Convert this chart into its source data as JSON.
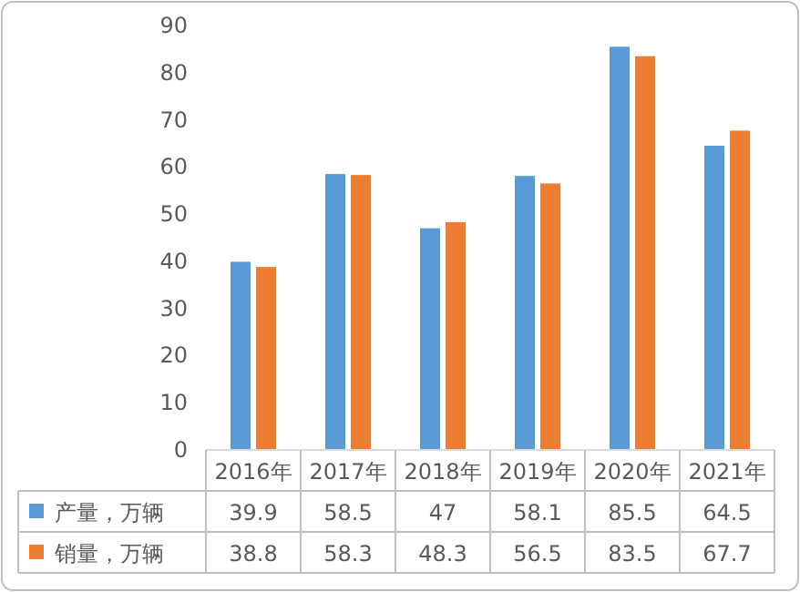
{
  "chart_data": {
    "type": "bar",
    "categories": [
      "2016年",
      "2017年",
      "2018年",
      "2019年",
      "2020年",
      "2021年"
    ],
    "series": [
      {
        "name": "产量，万辆",
        "color": "#5b9bd5",
        "values": [
          39.9,
          58.5,
          47,
          58.1,
          85.5,
          64.5
        ]
      },
      {
        "name": "销量，万辆",
        "color": "#ed7d31",
        "values": [
          38.8,
          58.3,
          48.3,
          56.5,
          83.5,
          67.7
        ]
      }
    ],
    "ylim": [
      0,
      90
    ],
    "yticks": [
      0,
      10,
      20,
      30,
      40,
      50,
      60,
      70,
      80,
      90
    ],
    "data_labels": true,
    "legend": "bottom"
  }
}
